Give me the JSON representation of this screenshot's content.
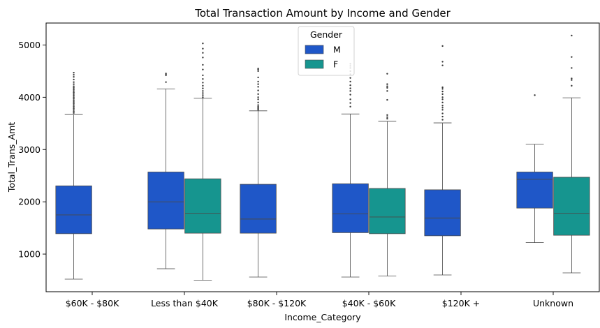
{
  "chart_data": {
    "type": "box",
    "title": "Total Transaction Amount by Income and Gender",
    "xlabel": "Income_Category",
    "ylabel": "Total_Trans_Amt",
    "ylim": [
      280,
      5420
    ],
    "yticks": [
      1000,
      2000,
      3000,
      4000,
      5000
    ],
    "categories": [
      "$60K - $80K",
      "Less than $40K",
      "$80K - $120K",
      "$40K - $60K",
      "$120K +",
      "Unknown"
    ],
    "legend": {
      "title": "Gender",
      "position": "upper-center"
    },
    "series": [
      {
        "name": "M",
        "color": "#1f57c8",
        "boxes": [
          {
            "whislo": 520,
            "q1": 1390,
            "med": 1750,
            "q3": 2305,
            "whishi": 3670,
            "fliers": [
              3700,
              3730,
              3760,
              3790,
              3820,
              3850,
              3880,
              3910,
              3940,
              3970,
              4000,
              4030,
              4060,
              4090,
              4120,
              4150,
              4180,
              4210,
              4250,
              4290,
              4340,
              4390,
              4430,
              4470
            ]
          },
          {
            "whislo": 720,
            "q1": 1480,
            "med": 2000,
            "q3": 2570,
            "whishi": 4160,
            "fliers": [
              4290,
              4420,
              4440,
              4455
            ]
          },
          {
            "whislo": 560,
            "q1": 1400,
            "med": 1670,
            "q3": 2335,
            "whishi": 3740,
            "fliers": [
              3760,
              3780,
              3800,
              3820,
              3850,
              3900,
              3960,
              4000,
              4060,
              4130,
              4200,
              4250,
              4300,
              4380,
              4500,
              4530,
              4550
            ]
          },
          {
            "whislo": 560,
            "q1": 1410,
            "med": 1770,
            "q3": 2345,
            "whishi": 3680,
            "fliers": [
              3820,
              3890,
              3960,
              4050,
              4120,
              4170,
              4230,
              4300,
              4370,
              4440,
              4500,
              4560,
              4600,
              4640
            ]
          },
          {
            "whislo": 600,
            "q1": 1350,
            "med": 1690,
            "q3": 2230,
            "whishi": 3510,
            "fliers": [
              3570,
              3630,
              3690,
              3760,
              3800,
              3840,
              3900,
              3960,
              4000,
              4060,
              4110,
              4160,
              4190,
              4610,
              4680,
              4980
            ]
          },
          {
            "whislo": 1220,
            "q1": 1880,
            "med": 2430,
            "q3": 2570,
            "whishi": 3100,
            "fliers": [
              4040
            ]
          }
        ]
      },
      {
        "name": "F",
        "color": "#16958f",
        "boxes": [
          null,
          {
            "whislo": 500,
            "q1": 1400,
            "med": 1780,
            "q3": 2440,
            "whishi": 3980,
            "fliers": [
              4000,
              4040,
              4080,
              4120,
              4170,
              4220,
              4280,
              4350,
              4420,
              4530,
              4620,
              4760,
              4850,
              4930,
              5030
            ]
          },
          null,
          {
            "whislo": 580,
            "q1": 1390,
            "med": 1710,
            "q3": 2255,
            "whishi": 3540,
            "fliers": [
              3590,
              3620,
              3660,
              3950,
              4120,
              4180,
              4210,
              4250,
              4450
            ]
          },
          null,
          {
            "whislo": 640,
            "q1": 1360,
            "med": 1780,
            "q3": 2470,
            "whishi": 3990,
            "fliers": [
              4220,
              4330,
              4360,
              4560,
              4770,
              5180
            ]
          }
        ]
      }
    ]
  }
}
